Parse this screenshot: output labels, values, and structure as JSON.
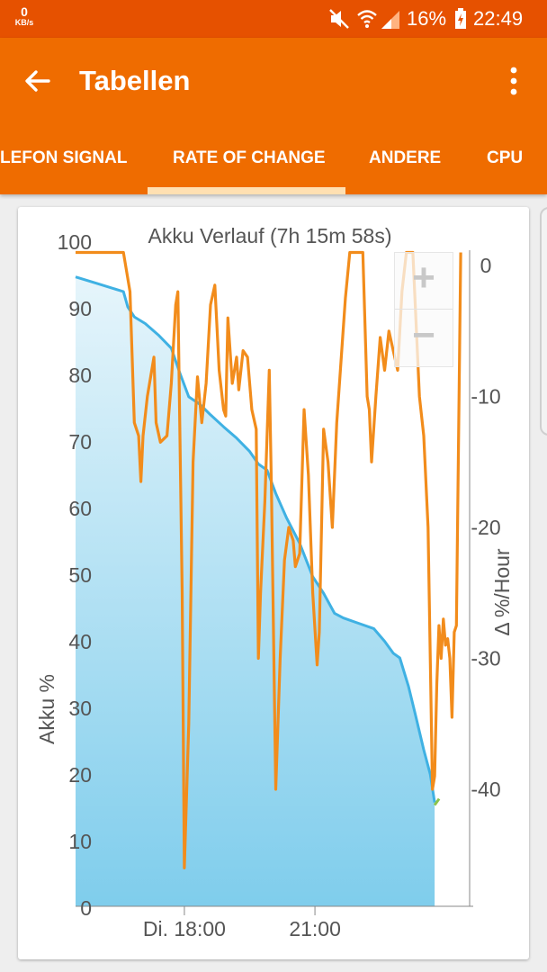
{
  "status_bar": {
    "net_speed": "0",
    "net_unit": "KB/s",
    "battery_text": "16%",
    "time": "22:49",
    "icons": [
      "mute-icon",
      "wifi-icon",
      "signal-icon",
      "battery-charging-icon"
    ]
  },
  "toolbar": {
    "title": "Tabellen",
    "back_icon": "arrow-back-icon",
    "menu_icon": "more-vert-icon"
  },
  "tabs": [
    {
      "label": "LEFON SIGNAL",
      "selected": false
    },
    {
      "label": "RATE OF CHANGE",
      "selected": true
    },
    {
      "label": "ANDERE",
      "selected": false
    },
    {
      "label": "CPU",
      "selected": false
    }
  ],
  "zoom": {
    "in_label": "+",
    "out_label": "−"
  },
  "colors": {
    "status_bar": "#e65100",
    "toolbar": "#ef6c00",
    "tab_indicator": "#ffe0b2",
    "battery_line": "#3fb1e3",
    "battery_fill_top": "#e6f5fb",
    "battery_fill_bottom": "#7fcdec",
    "rate_line": "#f28c1b",
    "end_marker": "#8bc34a"
  },
  "chart_data": {
    "type": "line",
    "title": "Akku Verlauf (7h 15m 58s)",
    "ylabel": "Akku %",
    "y2label": "Δ %/Hour",
    "ylim": [
      0,
      100
    ],
    "y2lim": [
      -48,
      2
    ],
    "yticks": [
      "0",
      "10",
      "20",
      "30",
      "40",
      "50",
      "60",
      "70",
      "80",
      "90",
      "100"
    ],
    "y2ticks": [
      "0",
      "-10",
      "-20",
      "-30",
      "-40"
    ],
    "xticks": [
      "Di. 18:00",
      "21:00"
    ],
    "xtick_hours": [
      18,
      21
    ],
    "xlim_hours": [
      15.5,
      23.5
    ],
    "series": [
      {
        "name": "Akku %",
        "axis": "left",
        "style": "area",
        "points": [
          [
            15.5,
            94.5
          ],
          [
            16.0,
            93.5
          ],
          [
            16.6,
            92.3
          ],
          [
            16.7,
            90
          ],
          [
            16.85,
            88.5
          ],
          [
            17.1,
            87.5
          ],
          [
            17.4,
            85.8
          ],
          [
            17.7,
            83.8
          ],
          [
            17.9,
            80
          ],
          [
            18.1,
            76.5
          ],
          [
            18.35,
            75.4
          ],
          [
            18.6,
            73.8
          ],
          [
            18.9,
            72
          ],
          [
            19.2,
            70.3
          ],
          [
            19.5,
            68.3
          ],
          [
            19.7,
            66.4
          ],
          [
            19.9,
            65.5
          ],
          [
            20.1,
            62
          ],
          [
            20.35,
            58.3
          ],
          [
            20.65,
            54.5
          ],
          [
            20.95,
            49.5
          ],
          [
            21.2,
            47
          ],
          [
            21.45,
            44
          ],
          [
            21.65,
            43.3
          ],
          [
            22.0,
            42.5
          ],
          [
            22.35,
            41.7
          ],
          [
            22.6,
            39.8
          ],
          [
            22.8,
            38
          ],
          [
            22.95,
            37.3
          ],
          [
            23.15,
            33
          ],
          [
            23.3,
            29
          ],
          [
            23.5,
            23.5
          ],
          [
            23.65,
            19.8
          ],
          [
            23.75,
            15.6
          ]
        ]
      },
      {
        "name": "Δ %/Hour",
        "axis": "right",
        "style": "line",
        "points": [
          [
            15.5,
            1.0
          ],
          [
            16.6,
            1.0
          ],
          [
            16.75,
            -2
          ],
          [
            16.85,
            -12
          ],
          [
            16.95,
            -13
          ],
          [
            17.0,
            -16.5
          ],
          [
            17.05,
            -13
          ],
          [
            17.15,
            -10
          ],
          [
            17.3,
            -7
          ],
          [
            17.35,
            -12
          ],
          [
            17.45,
            -13.5
          ],
          [
            17.6,
            -13
          ],
          [
            17.7,
            -9
          ],
          [
            17.8,
            -3
          ],
          [
            17.85,
            -2
          ],
          [
            17.95,
            -25
          ],
          [
            18.0,
            -46
          ],
          [
            18.1,
            -35
          ],
          [
            18.2,
            -15
          ],
          [
            18.3,
            -8.5
          ],
          [
            18.4,
            -12
          ],
          [
            18.5,
            -9
          ],
          [
            18.6,
            -3
          ],
          [
            18.7,
            -1.5
          ],
          [
            18.8,
            -8
          ],
          [
            18.9,
            -11
          ],
          [
            18.95,
            -11.5
          ],
          [
            19.0,
            -4
          ],
          [
            19.1,
            -9
          ],
          [
            19.2,
            -7
          ],
          [
            19.25,
            -9.5
          ],
          [
            19.35,
            -6.5
          ],
          [
            19.45,
            -7
          ],
          [
            19.55,
            -11
          ],
          [
            19.65,
            -12.5
          ],
          [
            19.7,
            -30
          ],
          [
            19.75,
            -25
          ],
          [
            19.85,
            -18
          ],
          [
            19.95,
            -8
          ],
          [
            20.0,
            -17
          ],
          [
            20.1,
            -40
          ],
          [
            20.2,
            -30
          ],
          [
            20.3,
            -22.5
          ],
          [
            20.4,
            -20
          ],
          [
            20.5,
            -21
          ],
          [
            20.55,
            -23
          ],
          [
            20.65,
            -22
          ],
          [
            20.75,
            -11
          ],
          [
            20.85,
            -16
          ],
          [
            20.95,
            -25
          ],
          [
            21.05,
            -30.5
          ],
          [
            21.1,
            -28
          ],
          [
            21.2,
            -12.5
          ],
          [
            21.3,
            -15
          ],
          [
            21.4,
            -20
          ],
          [
            21.5,
            -12
          ],
          [
            21.7,
            -2.5
          ],
          [
            21.8,
            1.0
          ],
          [
            22.1,
            1.0
          ],
          [
            22.2,
            -10
          ],
          [
            22.25,
            -11
          ],
          [
            22.3,
            -15
          ],
          [
            22.4,
            -10
          ],
          [
            22.5,
            -5.5
          ],
          [
            22.6,
            -8
          ],
          [
            22.7,
            -5
          ],
          [
            22.8,
            -6.5
          ],
          [
            22.9,
            -8
          ],
          [
            23.0,
            -2
          ],
          [
            23.1,
            1.0
          ],
          [
            23.25,
            1.0
          ],
          [
            23.4,
            -10
          ],
          [
            23.5,
            -13
          ],
          [
            23.6,
            -20
          ],
          [
            23.7,
            -40
          ],
          [
            23.75,
            -39
          ],
          [
            23.8,
            -32
          ],
          [
            23.85,
            -27.5
          ],
          [
            23.9,
            -30
          ],
          [
            23.95,
            -27
          ],
          [
            24.0,
            -29
          ],
          [
            24.05,
            -28.5
          ],
          [
            24.1,
            -30
          ],
          [
            24.15,
            -34.5
          ],
          [
            24.2,
            -28
          ],
          [
            24.25,
            -27.5
          ],
          [
            24.35,
            1.0
          ]
        ]
      }
    ]
  }
}
